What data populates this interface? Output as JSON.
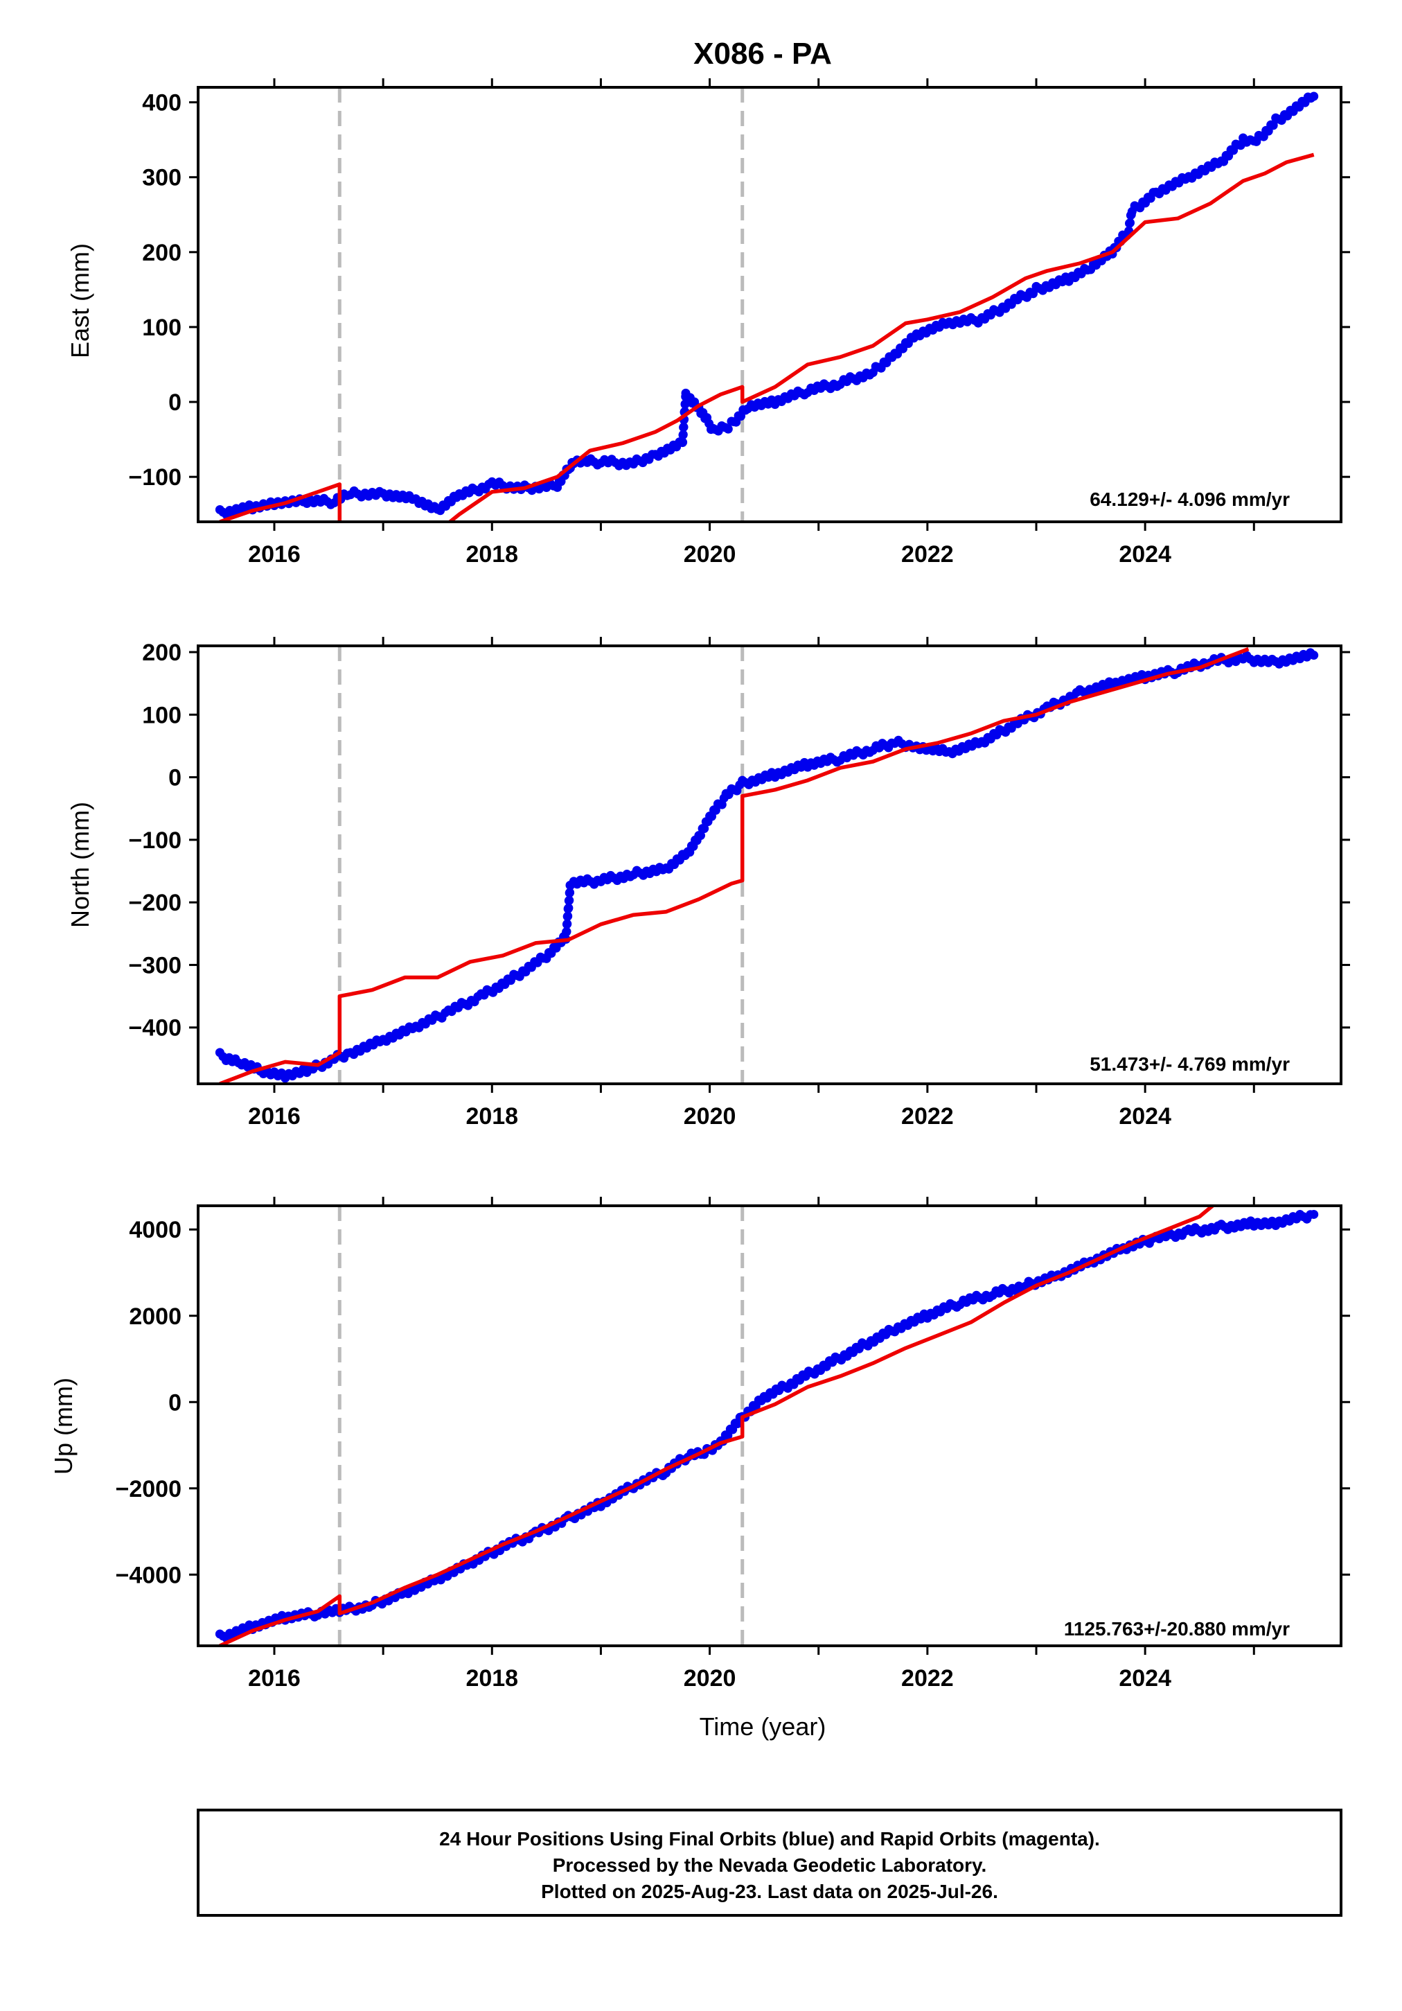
{
  "title": "X086 - PA",
  "colors": {
    "observed": "#0000ee",
    "model": "#ee0000",
    "event_line": "#bbbbbb",
    "frame": "#000000"
  },
  "chart_data": [
    {
      "type": "scatter",
      "panel": "east",
      "ylabel": "East (mm)",
      "xlabel": "",
      "xlim": [
        2015.3,
        2025.8
      ],
      "ylim": [
        -160,
        420
      ],
      "yticks": [
        -100,
        0,
        100,
        200,
        300,
        400
      ],
      "ytick_labels": [
        "−100",
        "0",
        "100",
        "200",
        "300",
        "400"
      ],
      "xticks": [
        2016,
        2018,
        2020,
        2022,
        2024
      ],
      "xtick_labels": [
        "2016",
        "2018",
        "2020",
        "2022",
        "2024"
      ],
      "event_lines": [
        2016.6,
        2020.3
      ],
      "rate_text": "64.129+/- 4.096 mm/yr",
      "series": [
        {
          "kind": "observed",
          "x": [
            2015.5,
            2015.8,
            2016.0,
            2016.3,
            2016.55,
            2016.7,
            2017.0,
            2017.3,
            2017.5,
            2017.7,
            2018.0,
            2018.3,
            2018.6,
            2018.72,
            2018.75,
            2019.0,
            2019.3,
            2019.5,
            2019.75,
            2019.78,
            2019.9,
            2020.05,
            2020.2,
            2020.35,
            2020.6,
            2020.9,
            2021.2,
            2021.5,
            2021.7,
            2021.9,
            2022.2,
            2022.5,
            2022.8,
            2023.0,
            2023.3,
            2023.5,
            2023.7,
            2023.85,
            2023.88,
            2024.1,
            2024.4,
            2024.7,
            2024.9,
            2025.0,
            2025.2,
            2025.55
          ],
          "y": [
            -148,
            -140,
            -135,
            -133,
            -133,
            -123,
            -122,
            -130,
            -145,
            -125,
            -110,
            -115,
            -110,
            -85,
            -80,
            -80,
            -82,
            -70,
            -55,
            10,
            -10,
            -40,
            -30,
            -5,
            0,
            15,
            25,
            40,
            65,
            90,
            105,
            110,
            135,
            150,
            165,
            180,
            200,
            230,
            255,
            280,
            300,
            320,
            350,
            345,
            375,
            408
          ]
        },
        {
          "kind": "model",
          "x": [
            2015.5,
            2015.8,
            2016.1,
            2016.4,
            2016.6,
            2016.6,
            2017.0,
            2017.4,
            2017.7,
            2018.0,
            2018.3,
            2018.6,
            2018.9,
            2019.2,
            2019.5,
            2019.7,
            2019.9,
            2020.1,
            2020.3,
            2020.3,
            2020.6,
            2020.9,
            2021.2,
            2021.5,
            2021.8,
            2022.0,
            2022.3,
            2022.6,
            2022.9,
            2023.1,
            2023.4,
            2023.7,
            2024.0,
            2024.3,
            2024.6,
            2024.9,
            2025.1,
            2025.3,
            2025.55
          ],
          "y": [
            -160,
            -145,
            -135,
            -120,
            -110,
            -165,
            -180,
            -185,
            -150,
            -120,
            -115,
            -100,
            -65,
            -55,
            -40,
            -25,
            -5,
            10,
            20,
            0,
            20,
            50,
            60,
            75,
            105,
            110,
            120,
            140,
            165,
            175,
            185,
            200,
            240,
            245,
            265,
            295,
            305,
            320,
            330
          ]
        }
      ]
    },
    {
      "type": "scatter",
      "panel": "north",
      "ylabel": "North (mm)",
      "xlabel": "",
      "xlim": [
        2015.3,
        2025.8
      ],
      "ylim": [
        -490,
        210
      ],
      "yticks": [
        -400,
        -300,
        -200,
        -100,
        0,
        100,
        200
      ],
      "ytick_labels": [
        "−400",
        "−300",
        "−200",
        "−100",
        "0",
        "100",
        "200"
      ],
      "xticks": [
        2016,
        2018,
        2020,
        2022,
        2024
      ],
      "xtick_labels": [
        "2016",
        "2018",
        "2020",
        "2022",
        "2024"
      ],
      "event_lines": [
        2016.6,
        2020.3
      ],
      "rate_text": "51.473+/- 4.769 mm/yr",
      "series": [
        {
          "kind": "observed",
          "x": [
            2015.5,
            2015.7,
            2015.9,
            2016.1,
            2016.3,
            2016.55,
            2016.7,
            2017.0,
            2017.3,
            2017.6,
            2017.9,
            2018.2,
            2018.5,
            2018.68,
            2018.72,
            2019.0,
            2019.3,
            2019.6,
            2019.8,
            2019.9,
            2020.0,
            2020.15,
            2020.3,
            2020.6,
            2020.9,
            2021.2,
            2021.5,
            2021.7,
            2021.9,
            2022.2,
            2022.5,
            2022.8,
            2023.1,
            2023.4,
            2023.7,
            2024.0,
            2024.3,
            2024.6,
            2024.9,
            2025.2,
            2025.55
          ],
          "y": [
            -445,
            -455,
            -470,
            -478,
            -470,
            -450,
            -440,
            -420,
            -400,
            -375,
            -350,
            -320,
            -285,
            -255,
            -170,
            -165,
            -155,
            -145,
            -120,
            -95,
            -65,
            -30,
            -10,
            5,
            20,
            30,
            45,
            55,
            50,
            40,
            55,
            85,
            110,
            135,
            150,
            160,
            170,
            185,
            190,
            185,
            195
          ]
        },
        {
          "kind": "model",
          "x": [
            2015.5,
            2015.8,
            2016.1,
            2016.4,
            2016.6,
            2016.6,
            2016.9,
            2017.2,
            2017.5,
            2017.8,
            2018.1,
            2018.4,
            2018.7,
            2019.0,
            2019.3,
            2019.6,
            2019.9,
            2020.2,
            2020.3,
            2020.3,
            2020.6,
            2020.9,
            2021.2,
            2021.5,
            2021.8,
            2022.1,
            2022.4,
            2022.7,
            2023.0,
            2023.3,
            2023.6,
            2023.9,
            2024.2,
            2024.5,
            2024.8,
            2024.95
          ],
          "y": [
            -490,
            -470,
            -455,
            -460,
            -440,
            -350,
            -340,
            -320,
            -320,
            -295,
            -285,
            -265,
            -260,
            -235,
            -220,
            -215,
            -195,
            -170,
            -165,
            -30,
            -20,
            -5,
            15,
            25,
            45,
            55,
            70,
            90,
            100,
            120,
            135,
            150,
            165,
            175,
            195,
            205
          ]
        }
      ]
    },
    {
      "type": "scatter",
      "panel": "up",
      "ylabel": "Up (mm)",
      "xlabel": "Time (year)",
      "xlim": [
        2015.3,
        2025.8
      ],
      "ylim": [
        -5650,
        4550
      ],
      "yticks": [
        -4000,
        -2000,
        0,
        2000,
        4000
      ],
      "ytick_labels": [
        "−4000",
        "−2000",
        "0",
        "2000",
        "4000"
      ],
      "xticks": [
        2016,
        2018,
        2020,
        2022,
        2024
      ],
      "xtick_labels": [
        "2016",
        "2018",
        "2020",
        "2022",
        "2024"
      ],
      "event_lines": [
        2016.6,
        2020.3
      ],
      "rate_text": "1125.763+/-20.880 mm/yr",
      "series": [
        {
          "kind": "observed",
          "x": [
            2015.5,
            2015.8,
            2016.1,
            2016.4,
            2016.6,
            2016.9,
            2017.2,
            2017.5,
            2017.8,
            2018.1,
            2018.4,
            2018.7,
            2019.0,
            2019.3,
            2019.6,
            2019.8,
            2019.95,
            2020.1,
            2020.3,
            2020.5,
            2020.8,
            2021.1,
            2021.4,
            2021.7,
            2022.0,
            2022.3,
            2022.6,
            2022.9,
            2023.2,
            2023.5,
            2023.8,
            2024.1,
            2024.4,
            2024.7,
            2025.0,
            2025.2,
            2025.55
          ],
          "y": [
            -5450,
            -5200,
            -5000,
            -4900,
            -4850,
            -4700,
            -4400,
            -4100,
            -3750,
            -3350,
            -3050,
            -2700,
            -2350,
            -1950,
            -1600,
            -1250,
            -1200,
            -900,
            -350,
            100,
            500,
            900,
            1300,
            1700,
            2000,
            2300,
            2500,
            2700,
            2950,
            3250,
            3550,
            3800,
            3950,
            4050,
            4150,
            4150,
            4350
          ]
        },
        {
          "kind": "model",
          "x": [
            2015.5,
            2015.8,
            2016.1,
            2016.4,
            2016.6,
            2016.6,
            2016.9,
            2017.2,
            2017.5,
            2017.8,
            2018.1,
            2018.4,
            2018.7,
            2019.0,
            2019.3,
            2019.6,
            2019.9,
            2020.1,
            2020.3,
            2020.3,
            2020.6,
            2020.9,
            2021.2,
            2021.5,
            2021.8,
            2022.1,
            2022.4,
            2022.7,
            2023.0,
            2023.3,
            2023.6,
            2023.9,
            2024.2,
            2024.5,
            2024.62
          ],
          "y": [
            -5650,
            -5300,
            -5050,
            -4850,
            -4500,
            -4900,
            -4650,
            -4300,
            -4000,
            -3650,
            -3300,
            -3000,
            -2650,
            -2300,
            -1950,
            -1550,
            -1200,
            -950,
            -800,
            -350,
            -50,
            350,
            600,
            900,
            1250,
            1550,
            1850,
            2300,
            2700,
            3000,
            3350,
            3700,
            4000,
            4300,
            4550
          ]
        }
      ]
    }
  ],
  "footer": {
    "line1": "24 Hour Positions Using Final Orbits (blue) and Rapid Orbits (magenta).",
    "line2": "Processed by the Nevada Geodetic Laboratory.",
    "line3": "Plotted on 2025-Aug-23. Last data on 2025-Jul-26."
  }
}
